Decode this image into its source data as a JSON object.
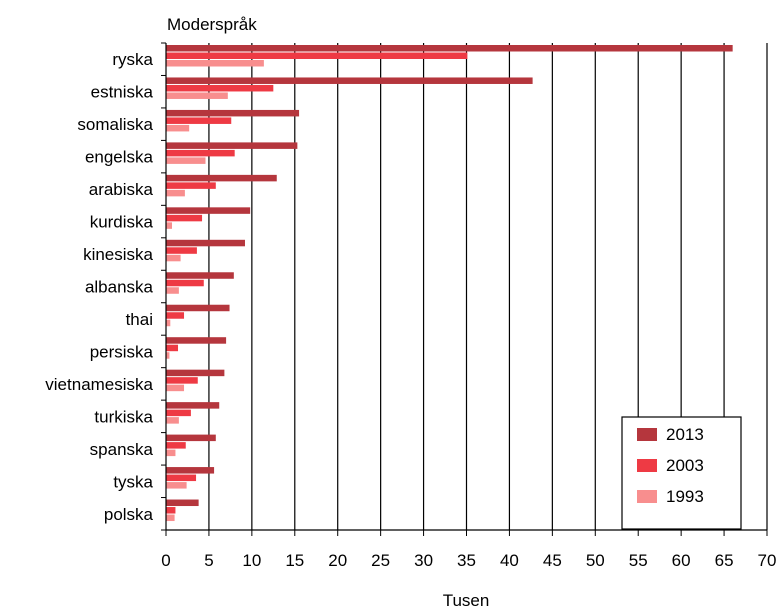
{
  "chart_data": {
    "type": "bar",
    "orientation": "horizontal",
    "title": "Moderspråk",
    "xlabel": "Tusen",
    "ylabel": "",
    "xlim": [
      0,
      70
    ],
    "xticks": [
      0,
      5,
      10,
      15,
      20,
      25,
      30,
      35,
      40,
      45,
      50,
      55,
      60,
      65,
      70
    ],
    "grid": true,
    "legend_position": "bottom-right",
    "categories": [
      "ryska",
      "estniska",
      "somaliska",
      "engelska",
      "arabiska",
      "kurdiska",
      "kinesiska",
      "albanska",
      "thai",
      "persiska",
      "vietnamesiska",
      "turkiska",
      "spanska",
      "tyska",
      "polska"
    ],
    "series": [
      {
        "name": "2013",
        "color": "#b5363d",
        "values": [
          66,
          42.7,
          15.5,
          15.3,
          12.9,
          9.8,
          9.2,
          7.9,
          7.4,
          7.0,
          6.8,
          6.2,
          5.8,
          5.6,
          3.8
        ]
      },
      {
        "name": "2003",
        "color": "#ee3a44",
        "values": [
          35.1,
          12.5,
          7.6,
          8.0,
          5.8,
          4.2,
          3.6,
          4.4,
          2.1,
          1.4,
          3.7,
          2.9,
          2.3,
          3.5,
          1.1
        ]
      },
      {
        "name": "1993",
        "color": "#f88e8e",
        "values": [
          11.4,
          7.2,
          2.7,
          4.6,
          2.2,
          0.7,
          1.7,
          1.5,
          0.5,
          0.4,
          2.1,
          1.5,
          1.1,
          2.4,
          1.0
        ]
      }
    ]
  }
}
